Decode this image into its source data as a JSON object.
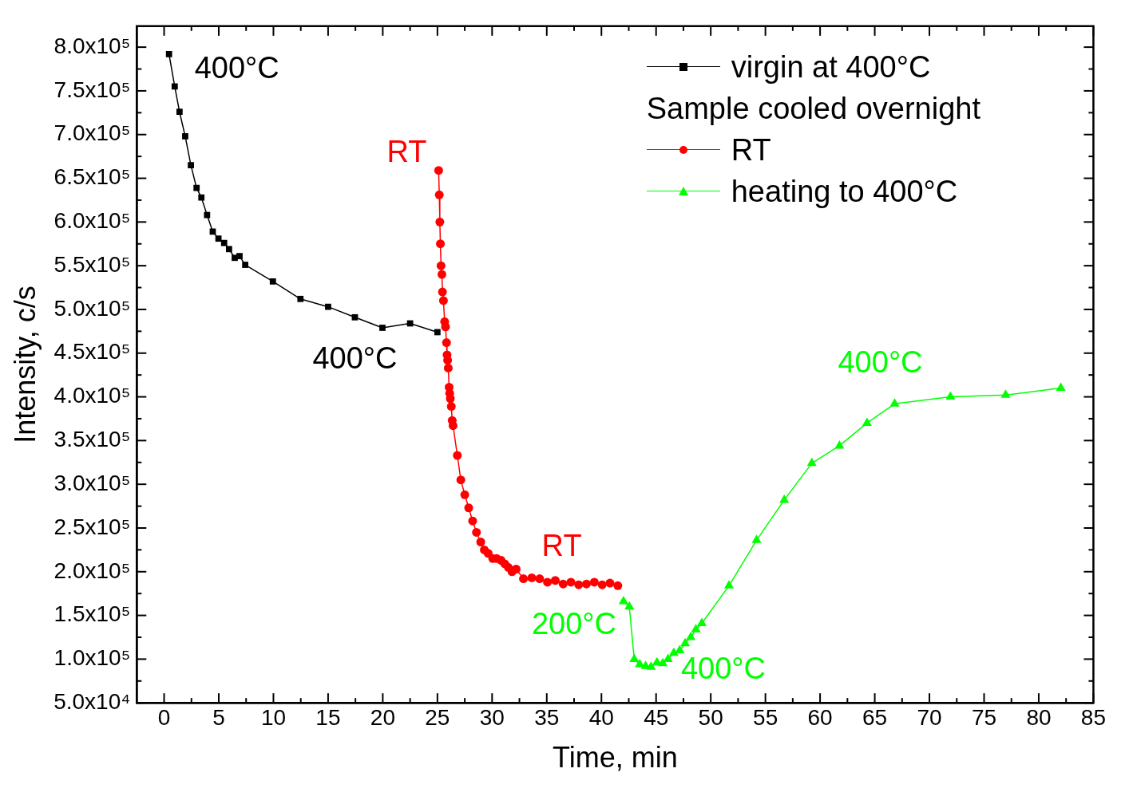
{
  "chart_data": {
    "type": "line",
    "xlabel": "Time, min",
    "ylabel": "Intensity, c/s",
    "xlim": [
      -2.5,
      85
    ],
    "xticks": [
      0,
      5,
      10,
      15,
      20,
      25,
      30,
      35,
      40,
      45,
      50,
      55,
      60,
      65,
      70,
      75,
      80,
      85
    ],
    "ylim": [
      50000,
      824000
    ],
    "yticks": [
      {
        "value": 50000,
        "label": "5.0x10⁴"
      },
      {
        "value": 100000,
        "label": "1.0x10⁵"
      },
      {
        "value": 150000,
        "label": "1.5x10⁵"
      },
      {
        "value": 200000,
        "label": "2.0x10⁵"
      },
      {
        "value": 250000,
        "label": "2.5x10⁵"
      },
      {
        "value": 300000,
        "label": "3.0x10⁵"
      },
      {
        "value": 350000,
        "label": "3.5x10⁵"
      },
      {
        "value": 400000,
        "label": "4.0x10⁵"
      },
      {
        "value": 450000,
        "label": "4.5x10⁵"
      },
      {
        "value": 500000,
        "label": "5.0x10⁵"
      },
      {
        "value": 550000,
        "label": "5.5x10⁵"
      },
      {
        "value": 600000,
        "label": "6.0x10⁵"
      },
      {
        "value": 650000,
        "label": "6.5x10⁵"
      },
      {
        "value": 700000,
        "label": "7.0x10⁵"
      },
      {
        "value": 750000,
        "label": "7.5x10⁵"
      },
      {
        "value": 800000,
        "label": "8.0x10⁵"
      }
    ],
    "grid": false,
    "legend": "top right",
    "legend_title": "Sample cooled overnight",
    "line_style": "solid",
    "series": [
      {
        "name": "virgin at 400°C",
        "color": "#000000",
        "marker": "square",
        "x": [
          0.45,
          0.97,
          1.41,
          1.93,
          2.45,
          2.97,
          3.41,
          3.93,
          4.45,
          4.97,
          5.49,
          5.94,
          6.46,
          6.9,
          7.42,
          9.95,
          12.47,
          15.0,
          17.45,
          19.97,
          22.5,
          25.0
        ],
        "values": [
          792000,
          755000,
          726000,
          698000,
          665000,
          639000,
          628000,
          608000,
          589000,
          581000,
          576000,
          569000,
          559000,
          561000,
          551000,
          532000,
          512000,
          503000,
          491000,
          479000,
          484000,
          474000
        ]
      },
      {
        "name": "RT",
        "color": "#ff0000",
        "marker": "circle",
        "x": [
          25.11,
          25.17,
          25.22,
          25.27,
          25.33,
          25.41,
          25.46,
          25.55,
          25.66,
          25.74,
          25.83,
          25.88,
          25.93,
          25.99,
          26.07,
          26.12,
          26.18,
          26.27,
          26.35,
          26.43,
          26.82,
          27.14,
          27.5,
          27.86,
          28.22,
          28.57,
          28.96,
          29.29,
          29.64,
          30.06,
          30.42,
          30.83,
          31.16,
          31.48,
          31.82,
          32.2,
          32.87,
          33.63,
          34.35,
          35.06,
          35.78,
          36.5,
          37.21,
          37.92,
          38.63,
          39.35,
          40.07,
          40.78,
          41.5
        ],
        "values": [
          659000,
          631000,
          600000,
          575000,
          550000,
          540000,
          520000,
          510000,
          486000,
          480000,
          462000,
          448000,
          442000,
          433000,
          411000,
          404000,
          398000,
          389000,
          373000,
          367000,
          333000,
          305000,
          288000,
          273000,
          258000,
          245000,
          234000,
          225000,
          221000,
          215000,
          215000,
          213000,
          209000,
          205000,
          200000,
          203000,
          192000,
          193000,
          192000,
          188000,
          190000,
          186000,
          188000,
          185000,
          186000,
          188000,
          185000,
          187000,
          184000
        ]
      },
      {
        "name": "heating to 400°C",
        "color": "#00ff00",
        "marker": "triangle",
        "x": [
          42.02,
          42.55,
          43.0,
          43.5,
          44.04,
          44.54,
          45.08,
          45.61,
          46.09,
          46.62,
          47.16,
          47.66,
          48.17,
          48.64,
          49.18,
          51.67,
          54.19,
          56.72,
          59.24,
          61.77,
          64.29,
          66.82,
          71.92,
          76.97,
          82.02
        ],
        "values": [
          166000,
          160000,
          100000,
          94000,
          92000,
          91000,
          96000,
          95000,
          100000,
          107000,
          110000,
          118000,
          125000,
          134000,
          141000,
          184000,
          236000,
          282000,
          324000,
          344000,
          370000,
          392000,
          400000,
          402000,
          410000
        ]
      }
    ],
    "annotations": [
      {
        "text": "400°C",
        "x": 0.45,
        "y": 792000
      },
      {
        "text": "400°C",
        "x": 17.45,
        "y": 491000
      },
      {
        "text": "RT",
        "x": 25.11,
        "y": 659000
      },
      {
        "text": "RT",
        "x": 35.06,
        "y": 188000
      },
      {
        "text": "200°C",
        "x": 42.02,
        "y": 166000
      },
      {
        "text": "400°C",
        "x": 49.18,
        "y": 141000
      },
      {
        "text": "400°C",
        "x": 66.82,
        "y": 392000
      }
    ]
  }
}
